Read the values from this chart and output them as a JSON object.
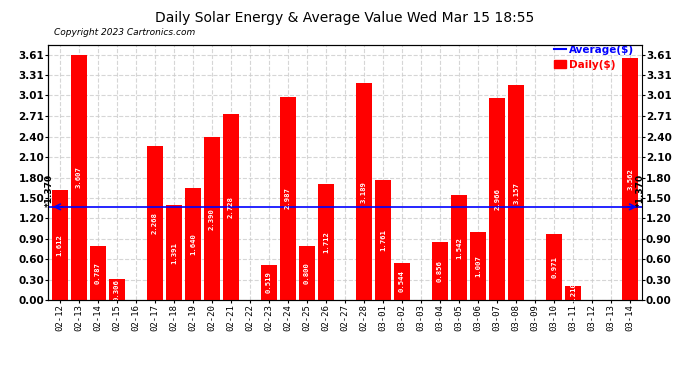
{
  "title": "Daily Solar Energy & Average Value Wed Mar 15 18:55",
  "copyright": "Copyright 2023 Cartronics.com",
  "legend_avg": "Average($)",
  "legend_daily": "Daily($)",
  "average_line": 1.37,
  "categories": [
    "02-12",
    "02-13",
    "02-14",
    "02-15",
    "02-16",
    "02-17",
    "02-18",
    "02-19",
    "02-20",
    "02-21",
    "02-22",
    "02-23",
    "02-24",
    "02-25",
    "02-26",
    "02-27",
    "02-28",
    "03-01",
    "03-02",
    "03-03",
    "03-04",
    "03-05",
    "03-06",
    "03-07",
    "03-08",
    "03-09",
    "03-10",
    "03-11",
    "03-12",
    "03-13",
    "03-14"
  ],
  "values": [
    1.612,
    3.607,
    0.787,
    0.306,
    0.0,
    2.268,
    1.391,
    1.64,
    2.39,
    2.728,
    0.0,
    0.519,
    2.987,
    0.8,
    1.712,
    0.0,
    3.189,
    1.761,
    0.544,
    0.002,
    0.856,
    1.542,
    1.007,
    2.966,
    3.157,
    0.0,
    0.971,
    0.21,
    0.0,
    0.0,
    3.562
  ],
  "bar_color": "#FF0000",
  "avg_line_color": "#0000FF",
  "avg_label_color": "#0000FF",
  "daily_label_color": "#FF0000",
  "title_color": "#000000",
  "background_color": "#FFFFFF",
  "grid_color": "#CCCCCC",
  "yticks": [
    0.0,
    0.3,
    0.6,
    0.9,
    1.2,
    1.5,
    1.8,
    2.1,
    2.4,
    2.71,
    3.01,
    3.31,
    3.61
  ],
  "ylim": [
    0.0,
    3.75
  ],
  "value_label_color": "#FFFFFF",
  "avg_annotation": "*1.370"
}
